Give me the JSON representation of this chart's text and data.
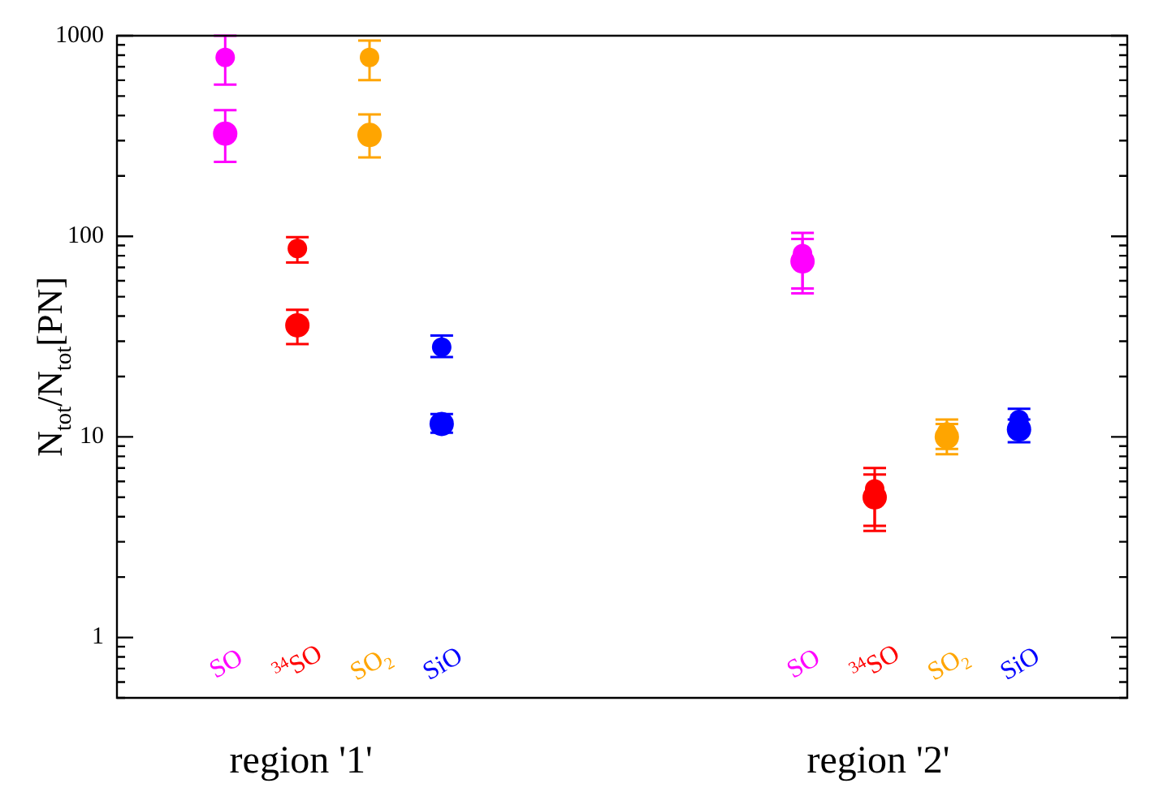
{
  "chart_data": {
    "type": "scatter",
    "ylabel": "N$_{tot}$/N$_{tot}$[PN]",
    "log": "y",
    "ylim": [
      0.5,
      1000
    ],
    "yticks": [
      1,
      10,
      100,
      1000
    ],
    "categories": [
      null,
      "SO",
      "$^{34}$SO",
      "SO$_{2}$",
      "SiO",
      null,
      null,
      null,
      null,
      "SO",
      "$^{34}$SO",
      "SO$_{2}$",
      "SiO",
      null
    ],
    "annotations": [
      "region '1'",
      "region '2'"
    ],
    "grid": false,
    "legend": false,
    "marker": "circle",
    "series": [
      {
        "colors": [
          "#000000",
          "#ff00ff",
          "#ff0000",
          "#ffa500",
          "#0000ff",
          "#000000",
          "#000000",
          "#000000",
          "#000000",
          "#ff00ff",
          "#ff0000",
          "#ffa500",
          "#0000ff",
          "#000000"
        ],
        "values": [
          null,
          780,
          87,
          780,
          28,
          null,
          null,
          null,
          null,
          82,
          5.5,
          10.6,
          12.2,
          null
        ],
        "errors": [
          null,
          [
            570,
            1000
          ],
          [
            74,
            99
          ],
          [
            600,
            945
          ],
          [
            25,
            32
          ],
          null,
          null,
          null,
          null,
          [
            55,
            104
          ],
          [
            3.6,
            7.0
          ],
          [
            8.7,
            12.2
          ],
          [
            12.2,
            13.8
          ],
          null
        ]
      },
      {
        "colors": [
          "#000000",
          "#ff00ff",
          "#ff0000",
          "#ffa500",
          "#0000ff",
          "#000000",
          "#000000",
          "#000000",
          "#000000",
          "#ff00ff",
          "#ff0000",
          "#ffa500",
          "#0000ff",
          "#000000"
        ],
        "values": [
          null,
          325,
          36,
          320,
          11.6,
          null,
          null,
          null,
          null,
          75,
          5.0,
          10.0,
          10.9,
          null
        ],
        "errors": [
          null,
          [
            235,
            425
          ],
          [
            29,
            43
          ],
          [
            247,
            405
          ],
          [
            10.5,
            13
          ],
          null,
          null,
          null,
          null,
          [
            52,
            97
          ],
          [
            3.4,
            6.5
          ],
          [
            8.2,
            11.6
          ],
          [
            9.4,
            10.9
          ],
          null
        ]
      }
    ]
  }
}
